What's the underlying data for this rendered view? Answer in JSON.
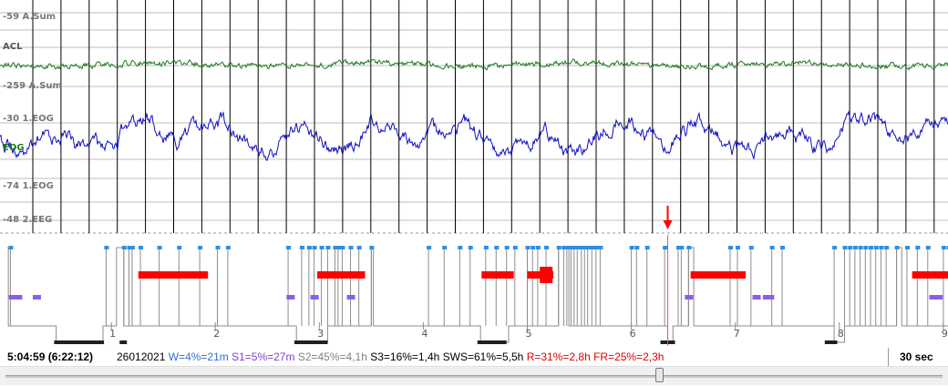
{
  "channels": [
    {
      "id": "ch1-top",
      "text": "-59 A.Sum"
    },
    {
      "id": "ch1-name",
      "text": "ACL"
    },
    {
      "id": "ch1-bot",
      "text": "-259 A.Sum"
    },
    {
      "id": "ch2-top",
      "text": "-30 1.EOG"
    },
    {
      "id": "ch2-name",
      "text": "EOG"
    },
    {
      "id": "ch2-bot",
      "text": "-74 1.EOG"
    },
    {
      "id": "ch3-top",
      "text": "-48 2.EEG"
    }
  ],
  "hours": [
    "1",
    "2",
    "3",
    "4",
    "5",
    "6",
    "7",
    "8",
    "9"
  ],
  "cursor_hours": 6.35,
  "status": {
    "time": "5:04:59 (6:22:12)",
    "date": "26012021",
    "stats": [
      {
        "text": "W=4%=21m",
        "color": "#2f6fd0"
      },
      {
        "text": "S1=5%=27m",
        "color": "#8040d0"
      },
      {
        "text": "S2=45%=4,1h",
        "color": "#808080"
      },
      {
        "text": "S3=16%=1,4h",
        "color": "#000000"
      },
      {
        "text": "SWS=61%=5,5h",
        "color": "#000000"
      },
      {
        "text": "R=31%=2,8h",
        "color": "#e00000"
      },
      {
        "text": "FR=25%=2,3h",
        "color": "#e00000"
      }
    ],
    "epoch": "30 sec"
  },
  "scrollbar": {
    "position": 0.7
  },
  "colors": {
    "acl": "#1f7a1f",
    "eog": "#1010c0",
    "wake": "#2f8fe0",
    "s1": "#8a5cf0",
    "rem": "#ff0000",
    "s3": "#202020",
    "cursor": "#ff5050"
  }
}
